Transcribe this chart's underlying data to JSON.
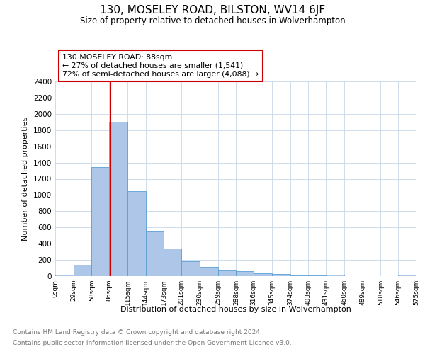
{
  "title": "130, MOSELEY ROAD, BILSTON, WV14 6JF",
  "subtitle": "Size of property relative to detached houses in Wolverhampton",
  "xlabel": "Distribution of detached houses by size in Wolverhampton",
  "ylabel": "Number of detached properties",
  "bar_color": "#aec6e8",
  "bar_edge_color": "#5a9fd4",
  "vline_x": 88,
  "vline_color": "#cc0000",
  "annotation_title": "130 MOSELEY ROAD: 88sqm",
  "annotation_line1": "← 27% of detached houses are smaller (1,541)",
  "annotation_line2": "72% of semi-detached houses are larger (4,088) →",
  "annotation_box_color": "#ffffff",
  "annotation_box_edge": "#cc0000",
  "bin_edges": [
    0,
    29,
    58,
    86,
    115,
    144,
    173,
    201,
    230,
    259,
    288,
    316,
    345,
    374,
    403,
    431,
    460,
    489,
    518,
    546,
    575
  ],
  "bin_heights": [
    15,
    140,
    1340,
    1900,
    1045,
    555,
    340,
    180,
    115,
    70,
    60,
    35,
    22,
    12,
    5,
    15,
    2,
    2,
    2,
    15
  ],
  "tick_labels": [
    "0sqm",
    "29sqm",
    "58sqm",
    "86sqm",
    "115sqm",
    "144sqm",
    "173sqm",
    "201sqm",
    "230sqm",
    "259sqm",
    "288sqm",
    "316sqm",
    "345sqm",
    "374sqm",
    "403sqm",
    "431sqm",
    "460sqm",
    "489sqm",
    "518sqm",
    "546sqm",
    "575sqm"
  ],
  "ylim": [
    0,
    2400
  ],
  "yticks": [
    0,
    200,
    400,
    600,
    800,
    1000,
    1200,
    1400,
    1600,
    1800,
    2000,
    2200,
    2400
  ],
  "footer_line1": "Contains HM Land Registry data © Crown copyright and database right 2024.",
  "footer_line2": "Contains public sector information licensed under the Open Government Licence v3.0.",
  "background_color": "#ffffff",
  "grid_color": "#c8d8e8"
}
